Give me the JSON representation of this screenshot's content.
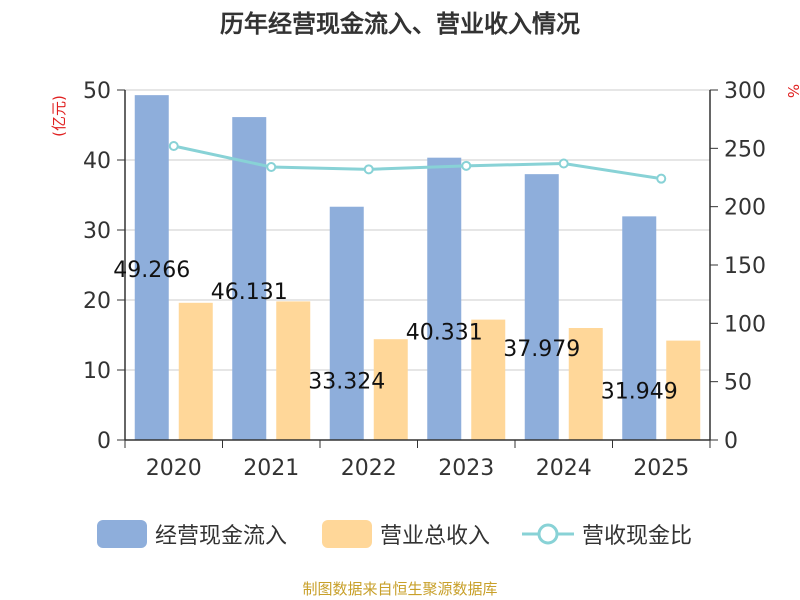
{
  "chart_data": {
    "type": "bar",
    "title": "历年经营现金流入、营业收入情况",
    "categories": [
      "2020",
      "2021",
      "2022",
      "2023",
      "2024",
      "2025"
    ],
    "series": [
      {
        "name": "经营现金流入",
        "type": "bar",
        "axis": "left",
        "color": "#8eaedb",
        "values": [
          49.266,
          46.131,
          33.324,
          40.331,
          37.979,
          31.949
        ]
      },
      {
        "name": "营业总收入",
        "type": "bar",
        "axis": "left",
        "color": "#ffd799",
        "values": [
          19.6,
          19.8,
          14.4,
          17.2,
          16.0,
          14.2
        ]
      },
      {
        "name": "营收现金比",
        "type": "line",
        "axis": "right",
        "color": "#88d2d6",
        "values": [
          252,
          234,
          232,
          235,
          237,
          224
        ]
      }
    ],
    "data_labels": [
      "49.266",
      "46.131",
      "33.324",
      "40.331",
      "37.979",
      "31.949"
    ],
    "ylabel": "(亿元)",
    "y2label": "%",
    "ylim": [
      0,
      50
    ],
    "y2lim": [
      0,
      300
    ],
    "yticks": [
      "0",
      "10",
      "20",
      "30",
      "40",
      "50"
    ],
    "y2ticks": [
      "0",
      "50",
      "100",
      "150",
      "200",
      "250",
      "300"
    ],
    "grid": true,
    "legend_position": "bottom"
  },
  "legend": {
    "items": [
      {
        "label": "经营现金流入",
        "color": "#8eaedb"
      },
      {
        "label": "营业总收入",
        "color": "#ffd799"
      },
      {
        "label": "营收现金比",
        "color": "#88d2d6"
      }
    ]
  },
  "source": "制图数据来自恒生聚源数据库"
}
